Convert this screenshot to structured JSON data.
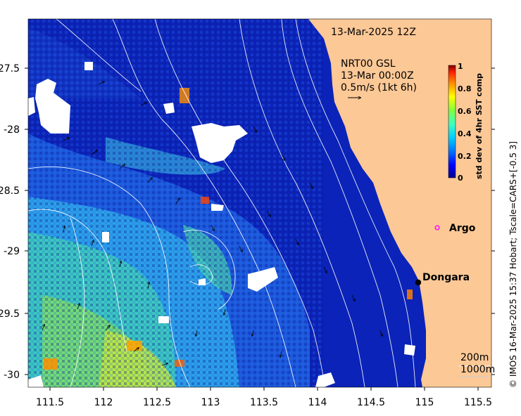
{
  "map": {
    "title": "13-Mar-2025 12Z",
    "current_source": "NRT00 GSL",
    "current_time": "13-Mar 00:00Z",
    "current_scale": "0.5m/s (1kt 6h)",
    "credit": "© IMOS 16-Mar-2025 15:37 Hobart; Tscale=CARS+[-0.5 3]",
    "lon_ticks": [
      "111.5",
      "112",
      "112.5",
      "113",
      "113.5",
      "114",
      "114.5",
      "115",
      "115.5"
    ],
    "lat_ticks": [
      "-27.5",
      "-28",
      "-28.5",
      "-29",
      "-29.5",
      "-30"
    ],
    "colorbar": {
      "label": "std dev of 4hr SST comp",
      "ticks": [
        "1",
        "0.8",
        "0.6",
        "0.4",
        "0.2",
        "0"
      ],
      "colormap": [
        "#00008f",
        "#0000ff",
        "#0080ff",
        "#00d0ff",
        "#40ffbf",
        "#80ff40",
        "#ffff00",
        "#ff9000",
        "#ff2000",
        "#800000"
      ]
    },
    "markers": [
      {
        "label": "Argo",
        "type": "argo-float",
        "color": "#ff00ff"
      },
      {
        "label": "Dongara",
        "type": "town",
        "color": "#000000"
      }
    ],
    "bathymetry_legend": [
      "200m",
      "1000m"
    ],
    "colors": {
      "land": "#fcc896",
      "ocean_deep": "#0a1fb0",
      "contour": "#ffffff",
      "cloud_mask": "#ffffff"
    }
  }
}
